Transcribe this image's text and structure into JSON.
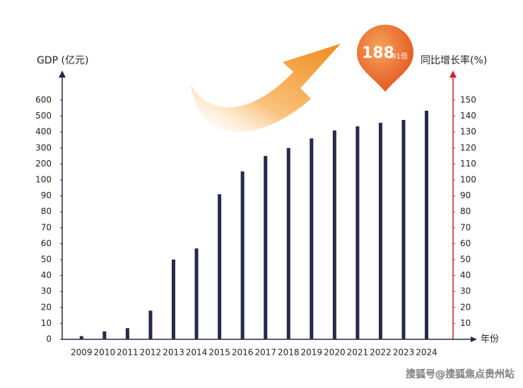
{
  "chart_data": {
    "type": "bar",
    "y_label": "GDP (亿元)",
    "y2_label": "同比增长率(%)",
    "x_label": "年份",
    "badge_main": "188",
    "badge_sub": ".91倍",
    "watermark": "搜狐号@搜狐焦点贵州站",
    "categories": [
      "2009",
      "2010",
      "2011",
      "2012",
      "2013",
      "2014",
      "2015",
      "2016",
      "2017",
      "2018",
      "2019",
      "2020",
      "2021",
      "2022",
      "2023",
      "2024"
    ],
    "values": [
      2,
      5,
      7,
      18,
      50,
      57,
      91,
      153,
      250,
      300,
      360,
      410,
      436,
      458,
      476,
      534
    ],
    "color": "#262a4a",
    "ylim": [
      0,
      600
    ],
    "yticks": [
      0,
      10,
      20,
      30,
      40,
      50,
      60,
      70,
      80,
      90,
      100,
      200,
      300,
      400,
      500,
      600
    ],
    "ytick_spacing": "even",
    "y2lim": [
      0,
      150
    ],
    "y2ticks": [
      10,
      20,
      30,
      40,
      50,
      60,
      70,
      80,
      90,
      100,
      110,
      120,
      130,
      140,
      150
    ]
  }
}
